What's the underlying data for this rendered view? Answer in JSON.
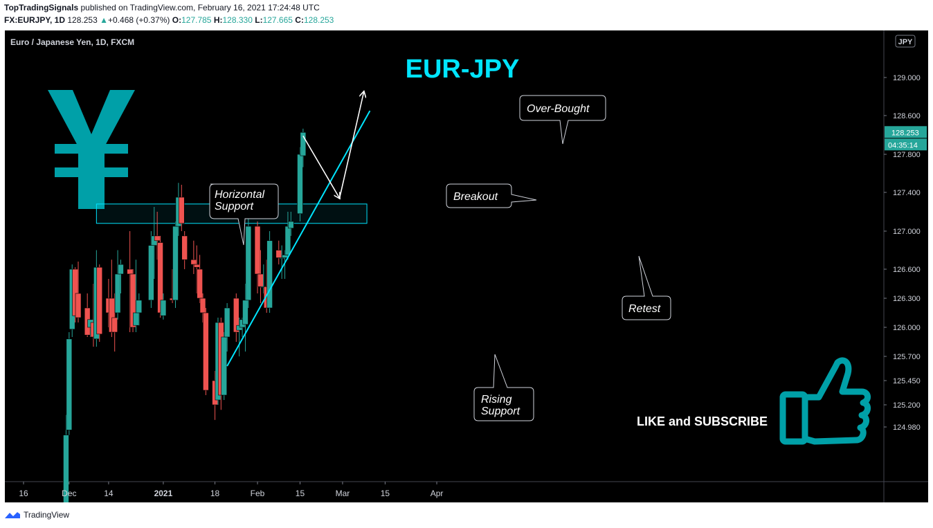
{
  "header": {
    "author": "TopTradingSignals",
    "published_text": "published on TradingView.com, February 16, 2021 17:24:48 UTC",
    "symbol": "FX:EURJPY, 1D",
    "last": "128.253",
    "change": "+0.468 (+0.37%)",
    "o_label": "O:",
    "o_val": "127.785",
    "h_label": "H:",
    "h_val": "128.330",
    "l_label": "L:",
    "l_val": "127.665",
    "c_label": "C:",
    "c_val": "128.253"
  },
  "footer": {
    "brand": "TradingView"
  },
  "colors": {
    "up": "#26a69a",
    "down": "#ef5350",
    "background": "#000000",
    "accent": "#00e5ff",
    "yen": "#00a0a8",
    "panel_text": "#d1d4dc"
  },
  "chart_data": {
    "type": "candlestick",
    "title": "EUR-JPY",
    "instrument": "Euro / Japanese Yen, 1D, FXCM",
    "currency_badge": "JPY",
    "last_price_label": "128.253",
    "countdown_label": "04:35:14",
    "y_ticks": [
      "129.000",
      "128.600",
      "127.800",
      "127.400",
      "127.000",
      "126.600",
      "126.300",
      "126.000",
      "125.700",
      "125.450",
      "125.200",
      "124.980"
    ],
    "x_ticks": [
      "16",
      "Dec",
      "14",
      "2021",
      "18",
      "Feb",
      "15",
      "Mar",
      "15",
      "Apr"
    ],
    "candles": [
      {
        "date": "2020-11-30",
        "o": 124.0,
        "h": 125.1,
        "l": 123.9,
        "c": 124.9
      },
      {
        "date": "2020-12-01",
        "o": 124.95,
        "h": 125.95,
        "l": 124.9,
        "c": 125.88
      },
      {
        "date": "2020-12-02",
        "o": 125.98,
        "h": 126.65,
        "l": 125.9,
        "c": 126.6
      },
      {
        "date": "2020-12-03",
        "o": 126.6,
        "h": 126.62,
        "l": 126.05,
        "c": 126.12
      },
      {
        "date": "2020-12-04",
        "o": 126.35,
        "h": 126.68,
        "l": 126.05,
        "c": 126.1
      },
      {
        "date": "2020-12-07",
        "o": 126.2,
        "h": 126.35,
        "l": 125.9,
        "c": 125.92
      },
      {
        "date": "2020-12-08",
        "o": 126.0,
        "h": 126.08,
        "l": 125.9,
        "c": 126.08
      },
      {
        "date": "2020-12-09",
        "o": 126.05,
        "h": 126.45,
        "l": 125.8,
        "c": 125.9
      },
      {
        "date": "2020-12-10",
        "o": 125.88,
        "h": 126.8,
        "l": 125.8,
        "c": 126.62
      },
      {
        "date": "2020-12-11",
        "o": 126.62,
        "h": 126.65,
        "l": 125.85,
        "c": 125.93
      },
      {
        "date": "2020-12-14",
        "o": 126.3,
        "h": 126.5,
        "l": 126.0,
        "c": 126.15
      },
      {
        "date": "2020-12-15",
        "o": 126.3,
        "h": 126.7,
        "l": 125.9,
        "c": 125.95
      },
      {
        "date": "2020-12-16",
        "o": 126.1,
        "h": 126.35,
        "l": 125.75,
        "c": 125.95
      },
      {
        "date": "2020-12-17",
        "o": 126.15,
        "h": 126.8,
        "l": 126.08,
        "c": 126.55
      },
      {
        "date": "2020-12-18",
        "o": 126.55,
        "h": 126.7,
        "l": 126.35,
        "c": 126.65
      },
      {
        "date": "2020-12-21",
        "o": 126.6,
        "h": 127.0,
        "l": 125.95,
        "c": 126.55
      },
      {
        "date": "2020-12-22",
        "o": 126.55,
        "h": 126.6,
        "l": 125.95,
        "c": 126.0
      },
      {
        "date": "2020-12-23",
        "o": 126.02,
        "h": 126.7,
        "l": 125.95,
        "c": 126.15
      },
      {
        "date": "2020-12-24",
        "o": 126.15,
        "h": 126.35,
        "l": 126.02,
        "c": 126.28
      },
      {
        "date": "2020-12-28",
        "o": 126.28,
        "h": 127.0,
        "l": 126.2,
        "c": 126.85
      },
      {
        "date": "2020-12-29",
        "o": 126.85,
        "h": 127.25,
        "l": 126.5,
        "c": 126.95
      },
      {
        "date": "2020-12-30",
        "o": 126.95,
        "h": 127.2,
        "l": 126.7,
        "c": 126.9
      },
      {
        "date": "2020-12-31",
        "o": 126.88,
        "h": 126.95,
        "l": 126.1,
        "c": 126.15
      },
      {
        "date": "2021-01-01",
        "o": 126.12,
        "h": 126.35,
        "l": 126.08,
        "c": 126.28
      },
      {
        "date": "2021-01-04",
        "o": 126.3,
        "h": 126.6,
        "l": 126.25,
        "c": 126.28
      },
      {
        "date": "2021-01-05",
        "o": 126.28,
        "h": 127.1,
        "l": 126.2,
        "c": 127.05
      },
      {
        "date": "2021-01-06",
        "o": 127.05,
        "h": 127.5,
        "l": 126.95,
        "c": 127.35
      },
      {
        "date": "2021-01-07",
        "o": 127.35,
        "h": 127.48,
        "l": 127.0,
        "c": 127.08
      },
      {
        "date": "2021-01-08",
        "o": 126.95,
        "h": 127.0,
        "l": 126.6,
        "c": 126.7
      },
      {
        "date": "2021-01-11",
        "o": 126.7,
        "h": 126.9,
        "l": 126.55,
        "c": 126.65
      },
      {
        "date": "2021-01-12",
        "o": 126.65,
        "h": 126.85,
        "l": 126.35,
        "c": 126.62
      },
      {
        "date": "2021-01-13",
        "o": 126.6,
        "h": 126.75,
        "l": 126.25,
        "c": 126.3
      },
      {
        "date": "2021-01-14",
        "o": 126.3,
        "h": 126.35,
        "l": 126.05,
        "c": 126.15
      },
      {
        "date": "2021-01-15",
        "o": 126.15,
        "h": 126.2,
        "l": 125.3,
        "c": 125.35
      },
      {
        "date": "2021-01-18",
        "o": 125.45,
        "h": 125.55,
        "l": 125.05,
        "c": 125.2
      },
      {
        "date": "2021-01-19",
        "o": 125.25,
        "h": 126.1,
        "l": 125.2,
        "c": 126.05
      },
      {
        "date": "2021-01-20",
        "o": 126.05,
        "h": 126.1,
        "l": 125.15,
        "c": 125.3
      },
      {
        "date": "2021-01-21",
        "o": 125.3,
        "h": 125.95,
        "l": 125.25,
        "c": 125.9
      },
      {
        "date": "2021-01-22",
        "o": 125.9,
        "h": 126.25,
        "l": 125.75,
        "c": 126.2
      },
      {
        "date": "2021-01-25",
        "o": 126.3,
        "h": 126.35,
        "l": 125.85,
        "c": 125.95
      },
      {
        "date": "2021-01-26",
        "o": 125.97,
        "h": 126.1,
        "l": 125.7,
        "c": 126.02
      },
      {
        "date": "2021-01-27",
        "o": 126.0,
        "h": 126.1,
        "l": 125.9,
        "c": 126.08
      },
      {
        "date": "2021-01-28",
        "o": 126.03,
        "h": 126.45,
        "l": 125.75,
        "c": 126.28
      },
      {
        "date": "2021-01-29",
        "o": 126.28,
        "h": 127.35,
        "l": 126.2,
        "c": 127.05
      },
      {
        "date": "2021-02-01",
        "o": 127.05,
        "h": 127.1,
        "l": 126.35,
        "c": 126.55
      },
      {
        "date": "2021-02-02",
        "o": 126.55,
        "h": 126.8,
        "l": 126.25,
        "c": 126.42
      },
      {
        "date": "2021-02-03",
        "o": 126.42,
        "h": 126.65,
        "l": 126.35,
        "c": 126.42
      },
      {
        "date": "2021-02-04",
        "o": 126.42,
        "h": 126.7,
        "l": 126.15,
        "c": 126.2
      },
      {
        "date": "2021-02-05",
        "o": 126.2,
        "h": 127.0,
        "l": 126.15,
        "c": 126.9
      },
      {
        "date": "2021-02-08",
        "o": 126.8,
        "h": 126.9,
        "l": 126.65,
        "c": 126.72
      },
      {
        "date": "2021-02-09",
        "o": 126.72,
        "h": 126.85,
        "l": 126.5,
        "c": 126.72
      },
      {
        "date": "2021-02-10",
        "o": 126.72,
        "h": 126.8,
        "l": 126.5,
        "c": 126.75
      },
      {
        "date": "2021-02-11",
        "o": 126.75,
        "h": 127.2,
        "l": 126.7,
        "c": 127.05
      },
      {
        "date": "2021-02-12",
        "o": 127.03,
        "h": 127.2,
        "l": 126.95,
        "c": 127.1
      },
      {
        "date": "2021-02-15",
        "o": 127.18,
        "h": 127.95,
        "l": 127.1,
        "c": 127.8
      },
      {
        "date": "2021-02-16",
        "o": 127.785,
        "h": 128.33,
        "l": 127.665,
        "c": 128.253
      }
    ],
    "annotations": [
      {
        "text": "Horizontal Support"
      },
      {
        "text": "Breakout"
      },
      {
        "text": "Over-Bought"
      },
      {
        "text": "Retest"
      },
      {
        "text": "Rising Support"
      },
      {
        "text": "LIKE and SUBSCRIBE"
      }
    ],
    "support_zone": {
      "from": "2020-12-10",
      "to": "2021-03-09",
      "low": 127.08,
      "high": 127.28
    },
    "rising_support": {
      "from": {
        "date": "2021-01-22",
        "price": 125.6
      },
      "to": {
        "date": "2021-03-10",
        "price": 128.65
      }
    },
    "projection": [
      {
        "date": "2021-02-16",
        "price": 128.18
      },
      {
        "date": "2021-02-28",
        "price": 127.34
      },
      {
        "date": "2021-03-08",
        "price": 128.85
      }
    ]
  }
}
